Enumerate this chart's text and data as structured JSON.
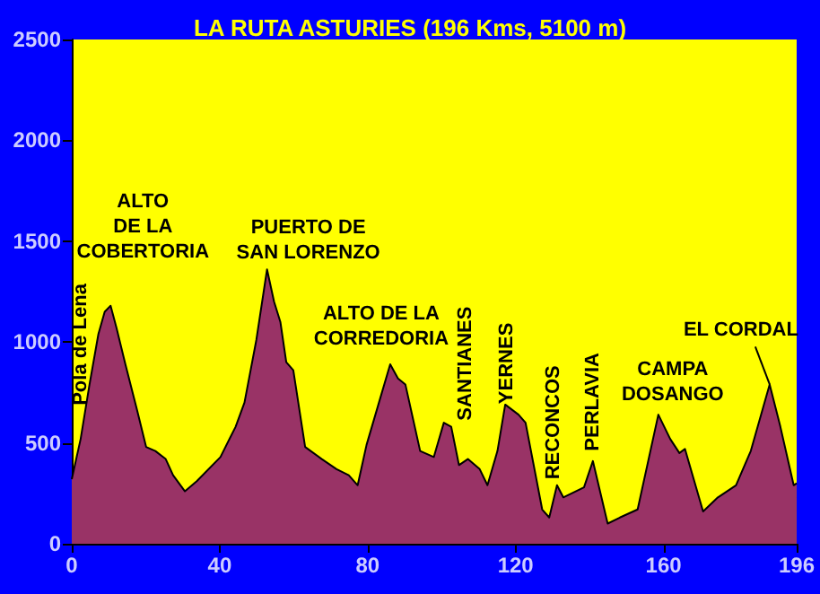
{
  "chart_data": {
    "type": "area",
    "title": "LA RUTA ASTURIES (196 Kms, 5100 m)",
    "x": [
      0,
      2.4,
      4.8,
      7.2,
      8.9,
      10.5,
      12.1,
      14.5,
      17.7,
      20.1,
      22.6,
      25.4,
      27.4,
      30.6,
      33.8,
      40.2,
      44.3,
      46.7,
      49.9,
      52.8,
      54.7,
      56.4,
      58.0,
      59.9,
      63.1,
      67.6,
      71.6,
      74.9,
      77.3,
      79.7,
      82.9,
      86.1,
      88.2,
      90.2,
      94.2,
      97.9,
      100.6,
      102.6,
      104.7,
      107.1,
      110.3,
      112.4,
      115.1,
      117.2,
      120.8,
      122.7,
      127.2,
      129.1,
      131.2,
      132.9,
      138.5,
      140.9,
      144.9,
      148.2,
      153,
      158.6,
      161.8,
      164.3,
      165.8,
      170.7,
      174.7,
      179.6,
      183.6,
      188.7,
      191.6,
      195.2,
      196
    ],
    "series": [
      {
        "color": "#993366",
        "values": [
          320,
          520,
          790,
          1040,
          1150,
          1180,
          1070,
          890,
          660,
          480,
          460,
          420,
          340,
          260,
          310,
          430,
          580,
          700,
          1010,
          1360,
          1200,
          1100,
          900,
          860,
          480,
          420,
          370,
          340,
          290,
          490,
          690,
          890,
          820,
          790,
          460,
          430,
          600,
          580,
          390,
          420,
          370,
          290,
          460,
          690,
          640,
          600,
          170,
          130,
          290,
          230,
          280,
          410,
          100,
          130,
          170,
          640,
          520,
          450,
          470,
          160,
          230,
          290,
          460,
          790,
          580,
          290,
          300
        ]
      }
    ],
    "xlim": [
      0,
      196
    ],
    "xticks": [
      0,
      40,
      80,
      120,
      160,
      196
    ],
    "ylim": [
      0,
      2500
    ],
    "yticks": [
      0,
      500,
      1000,
      1500,
      2000,
      2500
    ],
    "grid": false,
    "marker": "none",
    "line_style": "solid",
    "annotations": [
      "Pola de Lena",
      {
        "text": "ALTO\nDE LA\nCOBERTORIA",
        "x": 10.5,
        "y": 1180
      },
      {
        "text": "PUERTO DE\nSAN LORENZO",
        "x": 52.8,
        "y": 1360
      },
      {
        "text": "ALTO DE LA\nCORREDORIA",
        "x": 86.1,
        "y": 890
      },
      {
        "text": "SANTIANES",
        "x": 100.6,
        "y": 600
      },
      {
        "text": "YERNES",
        "x": 117.2,
        "y": 690
      },
      {
        "text": "RECONCOS",
        "x": 131.2,
        "y": 290
      },
      {
        "text": "PERLAVIA",
        "x": 140.9,
        "y": 410
      },
      {
        "text": "CAMPA\nDOSANGO",
        "x": 158.6,
        "y": 640
      },
      {
        "text": "EL CORDAL",
        "x": 188.7,
        "y": 790
      }
    ]
  }
}
